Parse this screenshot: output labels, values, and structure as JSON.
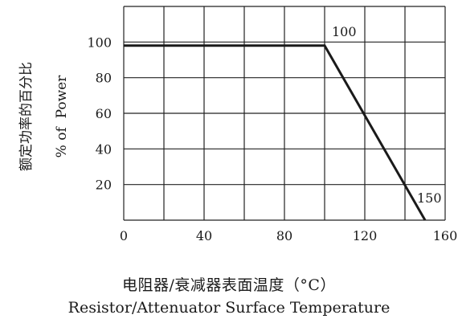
{
  "chart_data": {
    "type": "line",
    "series": [
      {
        "x": [
          0,
          100,
          150
        ],
        "y": [
          98,
          98,
          0
        ]
      }
    ],
    "xlim": [
      0,
      160
    ],
    "ylim": [
      0,
      120
    ],
    "x_ticks": [
      "0",
      "40",
      "80",
      "120",
      "160"
    ],
    "y_ticks": [
      "100",
      "80",
      "60",
      "40",
      "20"
    ],
    "y_tick_values": [
      100,
      80,
      60,
      40,
      20
    ],
    "x_tick_values": [
      0,
      40,
      80,
      120,
      160
    ],
    "annotations": [
      {
        "text": "100",
        "x": 100,
        "y": 98
      },
      {
        "text": "150",
        "x": 150,
        "y": 0
      }
    ],
    "grid": true,
    "ylabel_cn": "额定功率的百分比",
    "ylabel_en": "% of  Power",
    "xlabel_cn": "电阻器/衰减器表面温度（°C）",
    "xlabel_en": "Resistor/Attenuator Surface Temperature",
    "line_color": "#1a1a1a",
    "grid_color": "#222222"
  }
}
